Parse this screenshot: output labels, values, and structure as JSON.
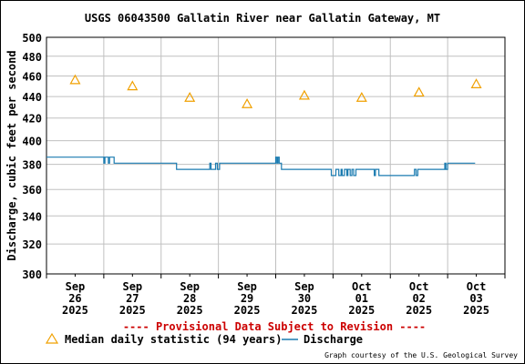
{
  "chart_data": {
    "type": "line",
    "title": "USGS 06043500 Gallatin River near Gallatin Gateway, MT",
    "ylabel": "Discharge, cubic feet per second",
    "ylim": [
      300,
      500
    ],
    "y_scale": "log",
    "y_ticks": [
      "500",
      "480",
      "460",
      "440",
      "420",
      "400",
      "380",
      "360",
      "340",
      "320",
      "300"
    ],
    "x_ticks": [
      {
        "line1": "Sep",
        "line2": "26",
        "line3": "2025"
      },
      {
        "line1": "Sep",
        "line2": "27",
        "line3": "2025"
      },
      {
        "line1": "Sep",
        "line2": "28",
        "line3": "2025"
      },
      {
        "line1": "Sep",
        "line2": "29",
        "line3": "2025"
      },
      {
        "line1": "Sep",
        "line2": "30",
        "line3": "2025"
      },
      {
        "line1": "Oct",
        "line2": "01",
        "line3": "2025"
      },
      {
        "line1": "Oct",
        "line2": "02",
        "line3": "2025"
      },
      {
        "line1": "Oct",
        "line2": "03",
        "line3": "2025"
      }
    ],
    "grid": true,
    "provisional_note": "---- Provisional Data Subject to Revision ----",
    "credit": "Graph courtesy of the U.S. Geological Survey",
    "series": [
      {
        "name": "Median daily statistic (94 years)",
        "kind": "marker-triangle",
        "color": "#f0a000",
        "x": [
          0.5,
          1.5,
          2.5,
          3.5,
          4.5,
          5.5,
          6.5,
          7.5
        ],
        "y": [
          456,
          450,
          439,
          433,
          441,
          439,
          444,
          452
        ]
      },
      {
        "name": "Discharge",
        "kind": "line",
        "color": "#1a7bb0",
        "x": [
          0.0,
          1.0,
          1.0,
          1.02,
          1.02,
          1.08,
          1.08,
          1.1,
          1.1,
          1.18,
          1.18,
          1.2,
          1.2,
          2.27,
          2.27,
          2.3,
          2.3,
          2.33,
          2.33,
          2.85,
          2.85,
          2.87,
          2.87,
          2.9,
          2.9,
          2.95,
          2.95,
          2.98,
          2.98,
          3.02,
          3.02,
          4.0,
          4.0,
          4.02,
          4.02,
          4.04,
          4.04,
          4.06,
          4.06,
          4.1,
          4.1,
          4.3,
          4.3,
          4.97,
          4.97,
          5.05,
          5.05,
          5.1,
          5.1,
          5.14,
          5.14,
          5.16,
          5.16,
          5.2,
          5.2,
          5.24,
          5.24,
          5.26,
          5.26,
          5.3,
          5.3,
          5.33,
          5.33,
          5.36,
          5.36,
          5.4,
          5.4,
          5.47,
          5.47,
          5.5,
          5.5,
          5.72,
          5.72,
          5.74,
          5.74,
          5.8,
          5.8,
          5.82,
          5.82,
          5.85,
          5.85,
          6.4,
          6.4,
          6.42,
          6.42,
          6.45,
          6.45,
          6.48,
          6.48,
          6.92,
          6.92,
          6.95,
          6.95,
          6.97,
          6.97,
          7.0,
          7.0,
          7.48
        ],
        "y": [
          386,
          386,
          381,
          381,
          386,
          386,
          381,
          381,
          386,
          386,
          381,
          381,
          381,
          381,
          376,
          376,
          376,
          376,
          376,
          376,
          381,
          381,
          376,
          376,
          376,
          376,
          381,
          381,
          376,
          376,
          381,
          381,
          386,
          386,
          381,
          381,
          386,
          386,
          381,
          381,
          376,
          376,
          376,
          376,
          371,
          371,
          376,
          376,
          371,
          371,
          376,
          376,
          371,
          371,
          376,
          376,
          371,
          371,
          376,
          376,
          371,
          371,
          376,
          376,
          371,
          371,
          376,
          376,
          376,
          376,
          376,
          376,
          371,
          371,
          376,
          376,
          371,
          371,
          371,
          371,
          371,
          371,
          371,
          371,
          376,
          376,
          371,
          371,
          376,
          376,
          376,
          376,
          381,
          381,
          376,
          376,
          381,
          381
        ]
      }
    ]
  },
  "colors": {
    "title": "#000000",
    "provisional": "#cc0000",
    "grid": "#c0c0c0",
    "triangle": "#f0a000",
    "discharge": "#1a7bb0"
  }
}
